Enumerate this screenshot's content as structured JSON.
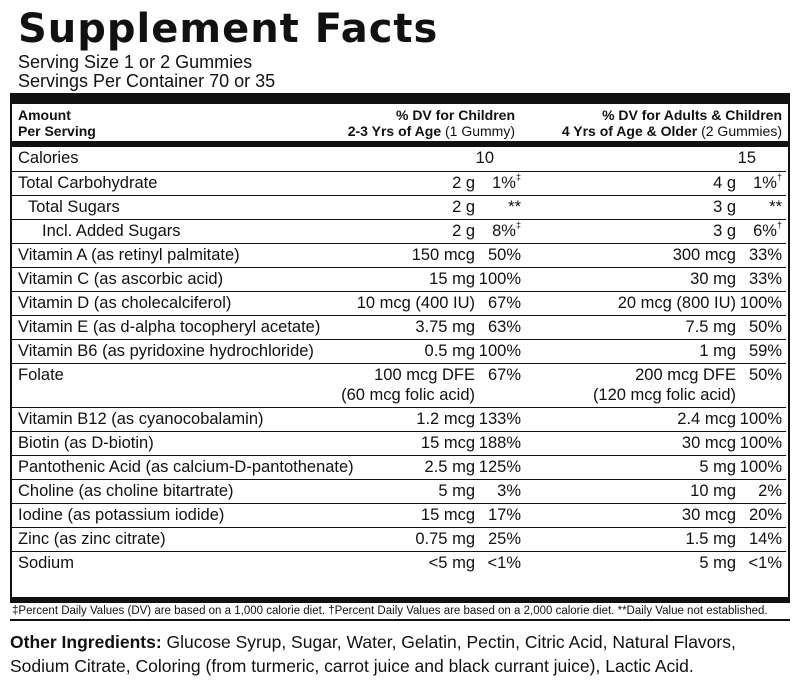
{
  "title": "Supplement Facts",
  "serving_size": "Serving Size 1 or 2 Gummies",
  "servings_per_container": "Servings Per Container 70 or 35",
  "header": {
    "amount_line1": "Amount",
    "amount_line2": "Per Serving",
    "children_line1": "% DV for Children",
    "children_line2_bold": "2-3 Yrs of Age",
    "children_line2_normal": "(1 Gummy)",
    "adults_line1": "% DV for Adults & Children",
    "adults_line2_bold": "4 Yrs of Age & Older",
    "adults_line2_normal": "(2 Gummies)"
  },
  "rows": [
    {
      "name": "Calories",
      "amt1": "10",
      "dv1": "",
      "amt2": "15",
      "dv2": ""
    },
    {
      "name": "Total Carbohydrate",
      "amt1": "2 g",
      "dv1": "1%",
      "dv1_sym": "‡",
      "amt2": "4 g",
      "dv2": "1%",
      "dv2_sym": "†"
    },
    {
      "name": "Total Sugars",
      "amt1": "2 g",
      "dv1": "**",
      "amt2": "3 g",
      "dv2": "**"
    },
    {
      "name": "Incl. Added Sugars",
      "amt1": "2 g",
      "dv1": "8%",
      "dv1_sym": "‡",
      "amt2": "3 g",
      "dv2": "6%",
      "dv2_sym": "†"
    },
    {
      "name": "Vitamin A (as retinyl palmitate)",
      "amt1": "150 mcg",
      "dv1": "50%",
      "amt2": "300 mcg",
      "dv2": "33%"
    },
    {
      "name": "Vitamin C (as ascorbic acid)",
      "amt1": "15 mg",
      "dv1": "100%",
      "amt2": "30 mg",
      "dv2": "33%"
    },
    {
      "name": "Vitamin D (as cholecalciferol)",
      "amt1": "10 mcg (400 IU)",
      "dv1": "67%",
      "amt2": "20 mcg (800 IU)",
      "dv2": "100%"
    },
    {
      "name": "Vitamin E (as d-alpha tocopheryl acetate)",
      "amt1": "3.75 mg",
      "dv1": "63%",
      "amt2": "7.5 mg",
      "dv2": "50%"
    },
    {
      "name": "Vitamin B6 (as pyridoxine hydrochloride)",
      "amt1": "0.5 mg",
      "dv1": "100%",
      "amt2": "1 mg",
      "dv2": "59%"
    },
    {
      "name": "Folate",
      "amt1": "100 mcg DFE",
      "amt1b": "(60 mcg folic acid)",
      "dv1": "67%",
      "amt2": "200 mcg DFE",
      "amt2b": "(120 mcg folic acid)",
      "dv2": "50%"
    },
    {
      "name": "Vitamin B12 (as cyanocobalamin)",
      "amt1": "1.2 mcg",
      "dv1": "133%",
      "amt2": "2.4 mcg",
      "dv2": "100%"
    },
    {
      "name": "Biotin (as D-biotin)",
      "amt1": "15 mcg",
      "dv1": "188%",
      "amt2": "30 mcg",
      "dv2": "100%"
    },
    {
      "name": "Pantothenic Acid (as calcium-D-pantothenate)",
      "amt1": "2.5 mg",
      "dv1": "125%",
      "amt2": "5 mg",
      "dv2": "100%"
    },
    {
      "name": "Choline (as choline bitartrate)",
      "amt1": "5 mg",
      "dv1": "3%",
      "amt2": "10 mg",
      "dv2": "2%"
    },
    {
      "name": "Iodine (as potassium iodide)",
      "amt1": "15 mcg",
      "dv1": "17%",
      "amt2": "30 mcg",
      "dv2": "20%"
    },
    {
      "name": "Zinc (as zinc citrate)",
      "amt1": "0.75 mg",
      "dv1": "25%",
      "amt2": "1.5 mg",
      "dv2": "14%"
    },
    {
      "name": "Sodium",
      "amt1": "<5 mg",
      "dv1": "<1%",
      "amt2": "5 mg",
      "dv2": "<1%"
    }
  ],
  "footnote": "‡Percent Daily Values (DV) are based on a 1,000 calorie diet. †Percent Daily Values are based on a 2,000 calorie diet. **Daily Value not established.",
  "other_ingredients_label": "Other Ingredients:",
  "other_ingredients_text": " Glucose Syrup, Sugar, Water, Gelatin, Pectin, Citric Acid, Natural Flavors, Sodium Citrate, Coloring (from turmeric, carrot juice and black currant juice), Lactic Acid."
}
